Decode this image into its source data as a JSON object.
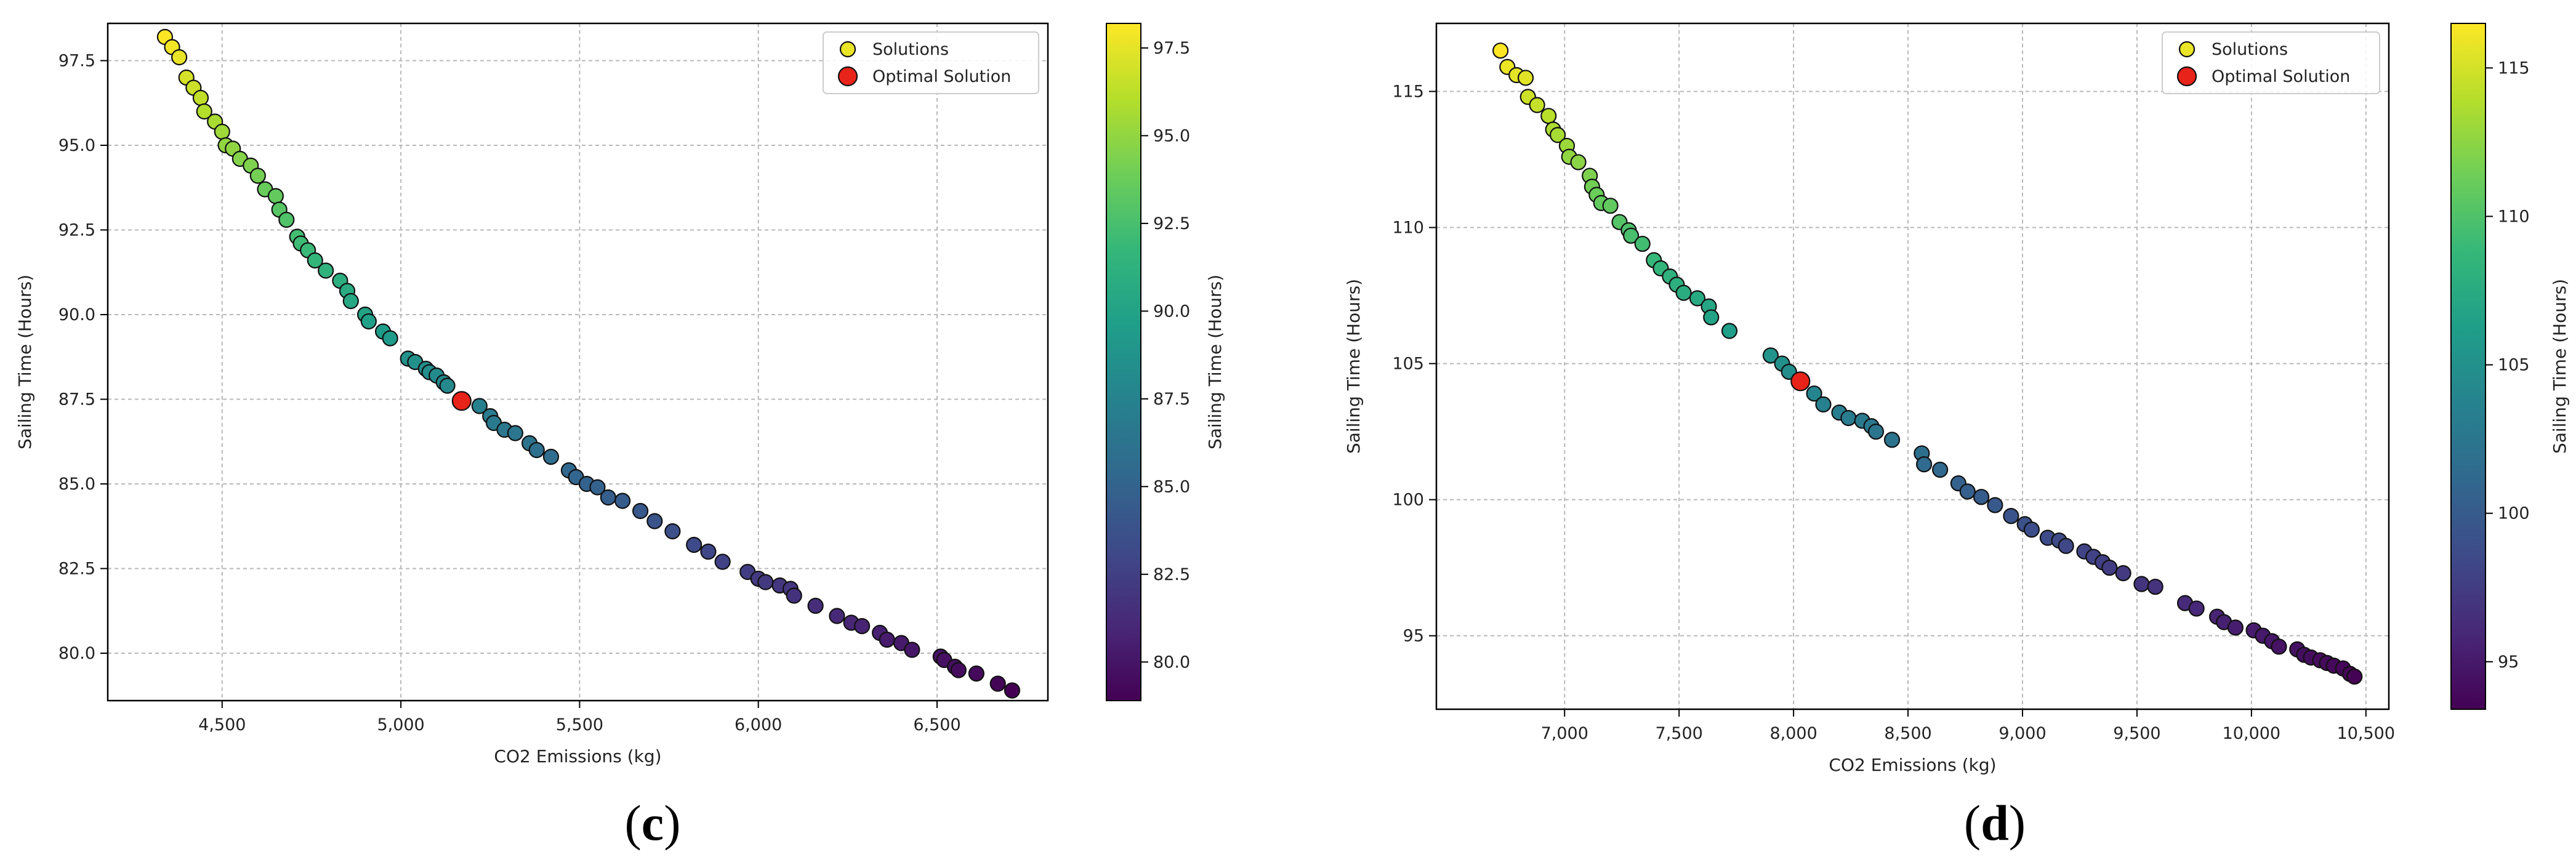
{
  "chart_data": [
    {
      "type": "scatter",
      "panel_label": "c",
      "xlabel": "CO2 Emissions (kg)",
      "ylabel": "Sailing Time (Hours)",
      "colorbar_label": "Sailing Time (Hours)",
      "colormap": "viridis",
      "xlim": [
        4180,
        6810
      ],
      "ylim": [
        78.6,
        98.6
      ],
      "xticks": [
        4500,
        5000,
        5500,
        6000,
        6500
      ],
      "xtick_labels": [
        "4,500",
        "5,000",
        "5,500",
        "6,000",
        "6,500"
      ],
      "yticks": [
        80.0,
        82.5,
        85.0,
        87.5,
        90.0,
        92.5,
        95.0,
        97.5
      ],
      "ytick_labels": [
        "80.0",
        "82.5",
        "85.0",
        "87.5",
        "90.0",
        "92.5",
        "95.0",
        "97.5"
      ],
      "colorbar_range": [
        78.9,
        98.2
      ],
      "colorbar_ticks": [
        80.0,
        82.5,
        85.0,
        87.5,
        90.0,
        92.5,
        95.0,
        97.5
      ],
      "colorbar_tick_labels": [
        "80.0",
        "82.5",
        "85.0",
        "87.5",
        "90.0",
        "92.5",
        "95.0",
        "97.5"
      ],
      "grid": true,
      "legend_position": "top-right",
      "series": [
        {
          "name": "Solutions",
          "points": [
            [
              4340,
              98.2
            ],
            [
              4360,
              97.9
            ],
            [
              4380,
              97.6
            ],
            [
              4400,
              97.0
            ],
            [
              4420,
              96.7
            ],
            [
              4440,
              96.4
            ],
            [
              4450,
              96.0
            ],
            [
              4480,
              95.7
            ],
            [
              4500,
              95.4
            ],
            [
              4510,
              95.0
            ],
            [
              4530,
              94.9
            ],
            [
              4550,
              94.6
            ],
            [
              4580,
              94.4
            ],
            [
              4600,
              94.1
            ],
            [
              4620,
              93.7
            ],
            [
              4650,
              93.5
            ],
            [
              4660,
              93.1
            ],
            [
              4680,
              92.8
            ],
            [
              4710,
              92.3
            ],
            [
              4720,
              92.1
            ],
            [
              4740,
              91.9
            ],
            [
              4760,
              91.6
            ],
            [
              4790,
              91.3
            ],
            [
              4830,
              91.0
            ],
            [
              4850,
              90.7
            ],
            [
              4860,
              90.4
            ],
            [
              4900,
              90.0
            ],
            [
              4910,
              89.8
            ],
            [
              4950,
              89.5
            ],
            [
              4970,
              89.3
            ],
            [
              5020,
              88.7
            ],
            [
              5040,
              88.6
            ],
            [
              5070,
              88.4
            ],
            [
              5080,
              88.3
            ],
            [
              5100,
              88.2
            ],
            [
              5120,
              88.0
            ],
            [
              5130,
              87.9
            ],
            [
              5220,
              87.3
            ],
            [
              5250,
              87.0
            ],
            [
              5260,
              86.8
            ],
            [
              5290,
              86.6
            ],
            [
              5320,
              86.5
            ],
            [
              5360,
              86.2
            ],
            [
              5380,
              86.0
            ],
            [
              5420,
              85.8
            ],
            [
              5470,
              85.4
            ],
            [
              5490,
              85.2
            ],
            [
              5520,
              85.0
            ],
            [
              5550,
              84.9
            ],
            [
              5580,
              84.6
            ],
            [
              5620,
              84.5
            ],
            [
              5670,
              84.2
            ],
            [
              5710,
              83.9
            ],
            [
              5760,
              83.6
            ],
            [
              5820,
              83.2
            ],
            [
              5860,
              83.0
            ],
            [
              5900,
              82.7
            ],
            [
              5970,
              82.4
            ],
            [
              6000,
              82.2
            ],
            [
              6020,
              82.1
            ],
            [
              6060,
              82.0
            ],
            [
              6090,
              81.9
            ],
            [
              6100,
              81.7
            ],
            [
              6160,
              81.4
            ],
            [
              6220,
              81.1
            ],
            [
              6260,
              80.9
            ],
            [
              6290,
              80.8
            ],
            [
              6340,
              80.6
            ],
            [
              6360,
              80.4
            ],
            [
              6400,
              80.3
            ],
            [
              6430,
              80.1
            ],
            [
              6510,
              79.9
            ],
            [
              6520,
              79.8
            ],
            [
              6550,
              79.6
            ],
            [
              6560,
              79.5
            ],
            [
              6610,
              79.4
            ],
            [
              6670,
              79.1
            ],
            [
              6710,
              78.9
            ]
          ]
        },
        {
          "name": "Optimal Solution",
          "color": "#e8231a",
          "points": [
            [
              5170,
              87.45
            ]
          ]
        }
      ]
    },
    {
      "type": "scatter",
      "panel_label": "d",
      "xlabel": "CO2 Emissions (kg)",
      "ylabel": "Sailing Time (Hours)",
      "colorbar_label": "Sailing Time (Hours)",
      "colormap": "viridis",
      "xlim": [
        6440,
        10600
      ],
      "ylim": [
        92.3,
        117.5
      ],
      "xticks": [
        7000,
        7500,
        8000,
        8500,
        9000,
        9500,
        10000,
        10500
      ],
      "xtick_labels": [
        "7,000",
        "7,500",
        "8,000",
        "8,500",
        "9,000",
        "9,500",
        "10,000",
        "10,500"
      ],
      "yticks": [
        95,
        100,
        105,
        110,
        115
      ],
      "ytick_labels": [
        "95",
        "100",
        "105",
        "110",
        "115"
      ],
      "colorbar_range": [
        93.4,
        116.5
      ],
      "colorbar_ticks": [
        95,
        100,
        105,
        110,
        115
      ],
      "colorbar_tick_labels": [
        "95",
        "100",
        "105",
        "110",
        "115"
      ],
      "grid": true,
      "legend_position": "top-right",
      "series": [
        {
          "name": "Solutions",
          "points": [
            [
              6720,
              116.5
            ],
            [
              6750,
              115.9
            ],
            [
              6790,
              115.6
            ],
            [
              6830,
              115.5
            ],
            [
              6840,
              114.8
            ],
            [
              6880,
              114.5
            ],
            [
              6930,
              114.1
            ],
            [
              6950,
              113.6
            ],
            [
              6970,
              113.4
            ],
            [
              7010,
              113.0
            ],
            [
              7020,
              112.6
            ],
            [
              7060,
              112.4
            ],
            [
              7110,
              111.9
            ],
            [
              7120,
              111.5
            ],
            [
              7140,
              111.2
            ],
            [
              7160,
              110.9
            ],
            [
              7200,
              110.8
            ],
            [
              7240,
              110.2
            ],
            [
              7280,
              109.9
            ],
            [
              7290,
              109.7
            ],
            [
              7340,
              109.4
            ],
            [
              7390,
              108.8
            ],
            [
              7420,
              108.5
            ],
            [
              7460,
              108.2
            ],
            [
              7490,
              107.9
            ],
            [
              7520,
              107.6
            ],
            [
              7580,
              107.4
            ],
            [
              7630,
              107.1
            ],
            [
              7640,
              106.7
            ],
            [
              7720,
              106.2
            ],
            [
              7900,
              105.3
            ],
            [
              7950,
              105.0
            ],
            [
              7980,
              104.7
            ],
            [
              8090,
              103.9
            ],
            [
              8130,
              103.5
            ],
            [
              8200,
              103.2
            ],
            [
              8240,
              103.0
            ],
            [
              8300,
              102.9
            ],
            [
              8340,
              102.7
            ],
            [
              8360,
              102.5
            ],
            [
              8430,
              102.2
            ],
            [
              8560,
              101.7
            ],
            [
              8570,
              101.3
            ],
            [
              8640,
              101.1
            ],
            [
              8720,
              100.6
            ],
            [
              8760,
              100.3
            ],
            [
              8820,
              100.1
            ],
            [
              8880,
              99.8
            ],
            [
              8950,
              99.4
            ],
            [
              9010,
              99.1
            ],
            [
              9040,
              98.9
            ],
            [
              9110,
              98.6
            ],
            [
              9160,
              98.5
            ],
            [
              9190,
              98.3
            ],
            [
              9270,
              98.1
            ],
            [
              9310,
              97.9
            ],
            [
              9350,
              97.7
            ],
            [
              9380,
              97.5
            ],
            [
              9440,
              97.3
            ],
            [
              9520,
              96.9
            ],
            [
              9580,
              96.8
            ],
            [
              9710,
              96.2
            ],
            [
              9760,
              96.0
            ],
            [
              9850,
              95.7
            ],
            [
              9880,
              95.5
            ],
            [
              9930,
              95.3
            ],
            [
              10010,
              95.2
            ],
            [
              10050,
              95.0
            ],
            [
              10090,
              94.8
            ],
            [
              10120,
              94.6
            ],
            [
              10200,
              94.5
            ],
            [
              10230,
              94.3
            ],
            [
              10260,
              94.2
            ],
            [
              10300,
              94.1
            ],
            [
              10330,
              94.0
            ],
            [
              10360,
              93.9
            ],
            [
              10400,
              93.8
            ],
            [
              10430,
              93.6
            ],
            [
              10450,
              93.5
            ]
          ]
        },
        {
          "name": "Optimal Solution",
          "color": "#e8231a",
          "points": [
            [
              8030,
              104.35
            ]
          ]
        }
      ]
    }
  ]
}
